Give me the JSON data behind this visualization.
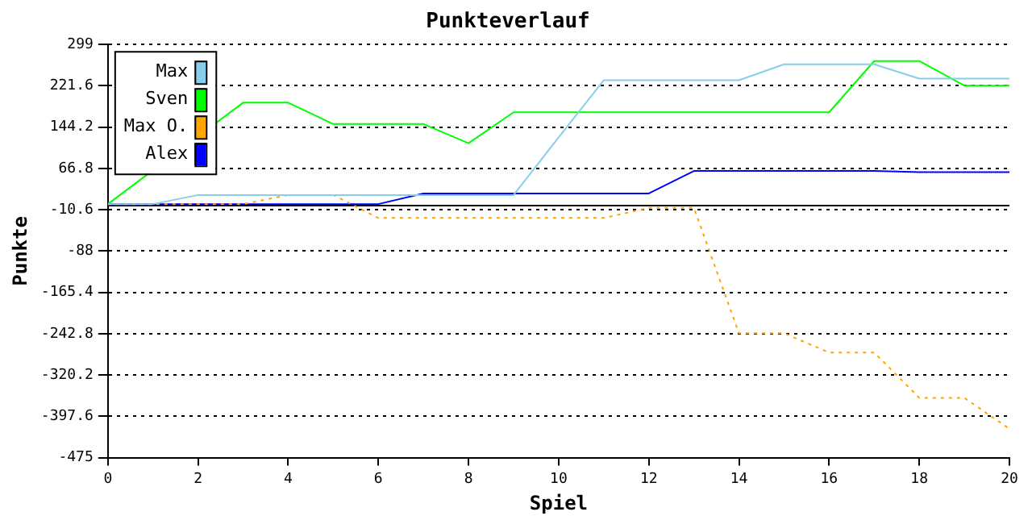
{
  "chart_data": {
    "type": "line",
    "title": "Punkteverlauf",
    "xlabel": "Spiel",
    "ylabel": "Punkte",
    "x": [
      0,
      1,
      2,
      3,
      4,
      5,
      6,
      7,
      8,
      9,
      10,
      11,
      12,
      13,
      14,
      15,
      16,
      17,
      18,
      19,
      20
    ],
    "series": [
      {
        "name": "Max",
        "color": "#87ceeb",
        "values": [
          0,
          0,
          17,
          17,
          17,
          17,
          17,
          17,
          17,
          17,
          125,
          232,
          232,
          232,
          232,
          262,
          262,
          262,
          235,
          235,
          235
        ]
      },
      {
        "name": "Sven",
        "color": "#00ff00",
        "values": [
          0,
          null,
          null,
          190,
          190,
          150,
          150,
          150,
          114,
          172,
          172,
          172,
          172,
          172,
          172,
          172,
          172,
          268,
          268,
          222,
          222
        ]
      },
      {
        "name": "Max O.",
        "color": "#ffa500",
        "line_style": "dotted",
        "values": [
          0,
          0,
          0,
          0,
          17,
          17,
          -26,
          -26,
          -26,
          -26,
          -26,
          -26,
          -7,
          -7,
          -242,
          -242,
          -278,
          -278,
          -363,
          -363,
          -421
        ]
      },
      {
        "name": "Alex",
        "color": "#0000ff",
        "values": [
          0,
          0,
          0,
          0,
          0,
          0,
          0,
          20,
          20,
          20,
          20,
          20,
          20,
          62,
          62,
          62,
          62,
          62,
          60,
          60,
          60
        ]
      }
    ],
    "xlim": [
      0,
      20
    ],
    "xticks": [
      0,
      2,
      4,
      6,
      8,
      10,
      12,
      14,
      16,
      18,
      20
    ],
    "ylim": [
      -475,
      299
    ],
    "yticks": [
      299,
      221.6,
      144.2,
      66.8,
      -10.6,
      -88,
      -165.4,
      -242.8,
      -320.2,
      -397.6,
      -475
    ],
    "ref_lines": [
      {
        "axis": "y",
        "value": 0,
        "color": "#000000"
      }
    ],
    "grid": "y",
    "legend": "top left",
    "marker": "none"
  }
}
